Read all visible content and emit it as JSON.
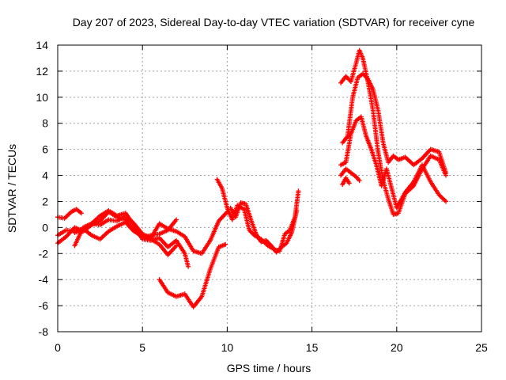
{
  "chart_data": {
    "type": "scatter",
    "title": "Day 207 of 2023, Sidereal Day-to-day VTEC variation (SDTVAR) for receiver cyne",
    "xlabel": "GPS time / hours",
    "ylabel": "SDTVAR / TECUs",
    "xlim": [
      0,
      25
    ],
    "ylim": [
      -8,
      14
    ],
    "xticks": [
      0,
      5,
      10,
      15,
      20,
      25
    ],
    "yticks": [
      -8,
      -6,
      -4,
      -2,
      0,
      2,
      4,
      6,
      8,
      10,
      12,
      14
    ],
    "grid": true,
    "marker": "+",
    "color": "#ff0000",
    "series": [
      {
        "name": "track-1",
        "x": [
          0.0,
          0.4,
          0.8,
          1.1,
          1.4
        ],
        "y": [
          0.8,
          0.7,
          1.2,
          1.4,
          1.1
        ]
      },
      {
        "name": "track-2",
        "x": [
          0.0,
          0.5,
          1.0,
          1.5,
          2.0,
          2.5,
          3.0,
          3.5,
          4.0,
          4.5,
          5.0,
          5.5,
          6.0,
          6.5,
          7.0
        ],
        "y": [
          -1.2,
          -0.7,
          0.0,
          -0.3,
          0.2,
          0.5,
          1.2,
          0.8,
          0.6,
          -0.2,
          -0.8,
          -0.6,
          -0.5,
          -0.2,
          0.6
        ]
      },
      {
        "name": "track-3",
        "x": [
          0.0,
          0.5,
          1.0,
          1.5,
          2.0,
          2.5,
          3.0,
          3.5,
          4.0,
          4.5,
          5.0,
          5.5,
          6.0,
          6.5,
          7.0,
          7.5,
          7.7
        ],
        "y": [
          -0.6,
          -0.2,
          -0.3,
          -0.1,
          0.3,
          0.9,
          1.3,
          0.9,
          1.1,
          0.2,
          -0.9,
          -1.0,
          -0.8,
          -1.5,
          -1.0,
          -2.0,
          -3.0
        ]
      },
      {
        "name": "track-4",
        "x": [
          1.0,
          1.5,
          2.0,
          2.5,
          3.0,
          3.5,
          4.0,
          4.5,
          5.0,
          5.5,
          6.0,
          6.5,
          7.0,
          7.5,
          8.0,
          8.5,
          9.0,
          9.5,
          10.0
        ],
        "y": [
          -1.4,
          0.0,
          0.3,
          0.2,
          0.6,
          0.5,
          0.9,
          0.3,
          -0.5,
          -0.8,
          0.3,
          -0.1,
          -0.3,
          -0.7,
          -1.8,
          -2.0,
          -1.0,
          0.5,
          1.2
        ]
      },
      {
        "name": "track-5",
        "x": [
          1.0,
          1.5,
          2.0,
          2.5,
          3.0,
          3.5,
          4.0,
          4.5,
          5.0,
          5.5,
          6.0,
          6.5,
          7.0
        ],
        "y": [
          -0.4,
          -0.1,
          -0.6,
          -0.9,
          -0.3,
          0.1,
          0.4,
          -0.3,
          -0.6,
          -0.9,
          -1.3,
          -2.1,
          -1.4
        ]
      },
      {
        "name": "track-6",
        "x": [
          6.0,
          6.5,
          7.0,
          7.5,
          8.0,
          8.5,
          9.0,
          9.5,
          9.9
        ],
        "y": [
          -4.0,
          -5.0,
          -5.3,
          -5.1,
          -6.1,
          -5.3,
          -3.2,
          -1.5,
          -1.3
        ]
      },
      {
        "name": "track-7",
        "x": [
          9.4,
          9.7,
          10.0,
          10.3,
          10.6,
          11.0,
          11.3,
          11.6,
          12.0,
          12.4,
          12.8,
          13.1,
          13.4,
          13.7,
          14.0,
          14.2
        ],
        "y": [
          3.7,
          3.0,
          1.5,
          0.6,
          1.7,
          1.4,
          -0.2,
          -0.6,
          -0.9,
          -1.4,
          -1.7,
          -1.8,
          -0.5,
          -0.2,
          0.8,
          2.8
        ]
      },
      {
        "name": "track-8",
        "x": [
          10.2,
          10.5,
          10.8,
          11.1,
          11.4,
          11.7,
          12.0,
          12.3,
          12.6,
          12.9,
          13.2,
          13.5,
          13.8,
          14.1
        ],
        "y": [
          1.5,
          0.8,
          1.9,
          1.8,
          0.6,
          -0.5,
          -1.1,
          -1.0,
          -1.4,
          -1.9,
          -1.5,
          -1.2,
          -0.4,
          1.3
        ]
      },
      {
        "name": "track-9",
        "x": [
          16.7,
          17.0,
          17.3,
          17.6,
          17.8,
          18.0,
          18.3,
          18.6,
          18.9,
          19.2,
          19.5,
          19.8,
          20.1,
          20.5,
          21.0,
          21.5,
          22.0,
          22.5,
          22.9
        ],
        "y": [
          11.1,
          11.6,
          11.2,
          12.6,
          13.6,
          13.0,
          11.2,
          9.0,
          5.8,
          3.6,
          2.2,
          1.0,
          1.1,
          2.6,
          3.2,
          4.5,
          5.5,
          5.2,
          4.0
        ]
      },
      {
        "name": "track-10",
        "x": [
          16.8,
          17.1,
          17.4,
          17.7,
          18.0,
          18.3,
          18.6,
          18.9,
          19.2,
          19.5,
          19.8,
          20.1,
          20.5,
          21.0,
          21.5,
          22.0,
          22.5,
          22.9
        ],
        "y": [
          6.5,
          7.0,
          10.0,
          11.5,
          11.8,
          11.4,
          10.6,
          9.0,
          6.5,
          5.0,
          5.5,
          5.2,
          5.4,
          4.8,
          5.3,
          6.0,
          5.8,
          4.2
        ]
      },
      {
        "name": "track-11",
        "x": [
          16.7,
          17.0,
          17.3,
          17.6,
          17.9,
          18.2,
          18.5,
          18.8,
          19.1,
          19.4,
          19.7,
          20.0,
          20.5,
          21.0,
          21.5,
          22.0,
          22.5,
          22.9
        ],
        "y": [
          4.8,
          5.0,
          7.2,
          8.2,
          8.5,
          7.0,
          6.0,
          4.8,
          3.2,
          4.5,
          3.0,
          1.5,
          2.7,
          3.5,
          4.8,
          3.5,
          2.5,
          2.0
        ]
      },
      {
        "name": "track-12",
        "x": [
          16.7,
          17.0,
          17.3,
          17.6,
          17.8
        ],
        "y": [
          4.0,
          4.5,
          4.2,
          3.9,
          3.6
        ]
      },
      {
        "name": "track-13",
        "x": [
          16.8,
          17.0,
          17.2
        ],
        "y": [
          3.3,
          3.8,
          3.4
        ]
      }
    ]
  }
}
